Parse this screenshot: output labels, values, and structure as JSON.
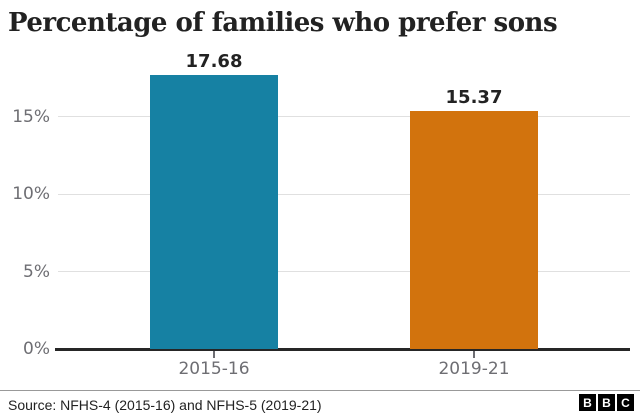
{
  "chart_data": {
    "type": "bar",
    "title": "Percentage of families who prefer sons",
    "categories": [
      "2015-16",
      "2019-21"
    ],
    "values": [
      17.68,
      15.37
    ],
    "value_labels": [
      "17.68",
      "15.37"
    ],
    "bar_colors": [
      "#1681a3",
      "#d2730d"
    ],
    "xlabel": "",
    "ylabel": "",
    "ylim": [
      0,
      18
    ],
    "yticks": [
      0,
      5,
      10,
      15
    ],
    "ytick_labels": [
      "0%",
      "5%",
      "10%",
      "15%"
    ],
    "grid": true,
    "legend": false
  },
  "footer": {
    "source_label": "Source: NFHS-4 (2015-16) and NFHS-5 (2019-21)",
    "logo_blocks": [
      "B",
      "B",
      "C"
    ]
  },
  "colors": {
    "title": "#222222",
    "axis_labels": "#6e6e73",
    "axis_line": "#262626",
    "gridline": "#e0e0e0",
    "teal_bar": "#1681a3",
    "orange_bar": "#d2730d",
    "background": "#ffffff"
  }
}
